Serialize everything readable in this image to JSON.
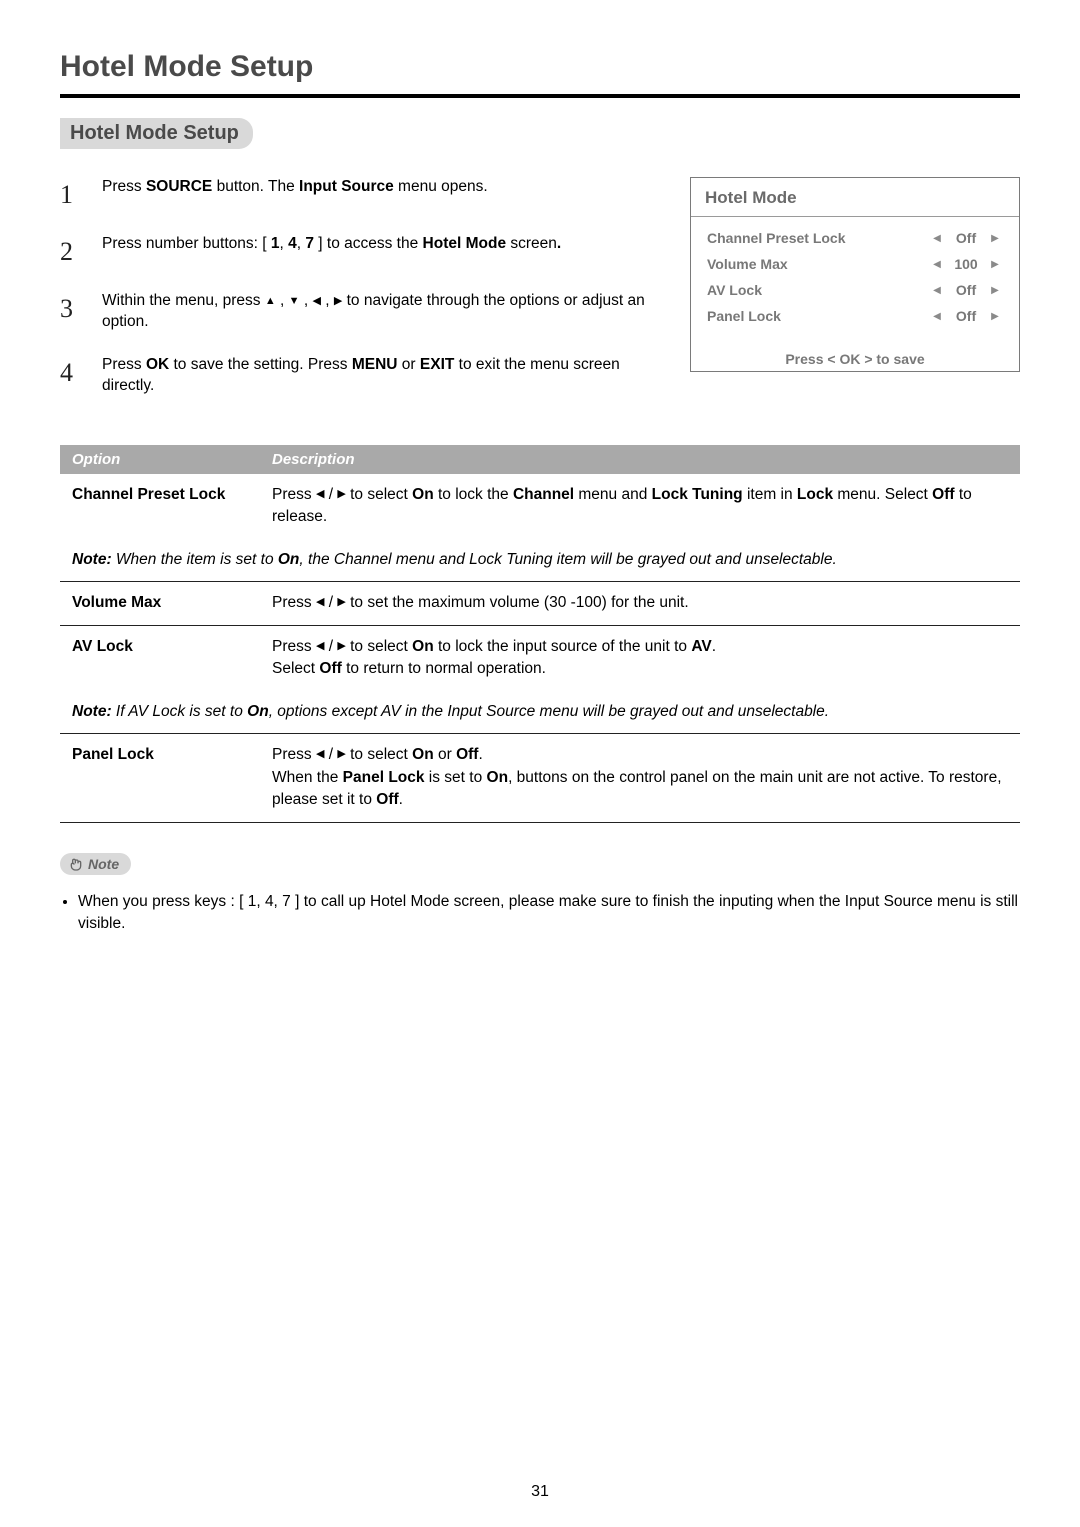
{
  "page": {
    "title": "Hotel Mode Setup",
    "section": "Hotel Mode Setup",
    "number": "31"
  },
  "steps": [
    {
      "n": "1",
      "html": "Press <b>SOURCE</b> button. The <b>Input Source</b> menu opens."
    },
    {
      "n": "2",
      "html": "Press number buttons: [ <b>1</b>, <b>4</b>, <b>7</b> ] to access the <b>Hotel Mode</b> screen<b>.</b>"
    },
    {
      "n": "3",
      "html": "Within the menu, press <span class='tri'>▲</span> , <span class='tri'>▼</span> , <span class='tri'>◀</span> , <span class='tri'>▶</span>  to navigate through the options or adjust an option."
    },
    {
      "n": "4",
      "html": "Press <b>OK</b> to save the setting. Press <b>MENU</b> or <b>EXIT</b> to exit the menu screen directly."
    }
  ],
  "panel": {
    "title": "Hotel  Mode",
    "rows": [
      {
        "label": "Channel Preset Lock",
        "value": "Off"
      },
      {
        "label": "Volume Max",
        "value": "100"
      },
      {
        "label": "AV Lock",
        "value": "Off"
      },
      {
        "label": "Panel Lock",
        "value": "Off"
      }
    ],
    "footer": "Press < OK > to save",
    "colors": {
      "border": "#7a7a7a",
      "text": "#787878"
    }
  },
  "table": {
    "headers": [
      "Option",
      "Description"
    ],
    "rows": [
      {
        "type": "opt",
        "option": "Channel Preset Lock",
        "desc": "Press <span class='tri'>◀</span> / <span class='tri'>▶</span>  to select <b>On</b> to lock the <b>Channel</b> menu and <b>Lock Tuning</b> item in <b>Lock</b> menu. Select <b>Off</b> to release."
      },
      {
        "type": "note",
        "desc": "<span class='nlabel'>Note:</span> When the item is set to <b>On</b>, the Channel menu and Lock Tuning item will be grayed out and unselectable."
      },
      {
        "type": "opt",
        "option": "Volume Max",
        "desc": "Press <span class='tri'>◀</span> / <span class='tri'>▶</span>  to set the maximum volume (30 -100) for the unit."
      },
      {
        "type": "opt",
        "option": "AV Lock",
        "desc": "Press <span class='tri'>◀</span> / <span class='tri'>▶</span>  to select <b>On</b> to lock the input source of the unit to <b>AV</b>.<br>Select <b>Off</b> to return to normal operation."
      },
      {
        "type": "note",
        "desc": "<span class='nlabel'>Note:</span> If AV Lock  is set to <b>On</b>, options  except  AV  in  the  Input  Source  menu  will  be  grayed  out  and  unselectable."
      },
      {
        "type": "opt",
        "option": "Panel Lock",
        "desc": "Press <span class='tri'>◀</span> / <span class='tri'>▶</span>  to select <b>On</b> or <b>Off</b>.<br>When the <b>Panel Lock</b> is set to <b>On</b>, buttons on the control panel on the main unit are not active. To restore, please set it to <b>Off</b>."
      }
    ]
  },
  "footnote": {
    "badge": "Note",
    "items": [
      "When  you  press  keys : [  1, 4, 7 ] to call up Hotel Mode screen, please make sure to  finish  the  inputing  when  the Input Source menu  is still visible."
    ]
  }
}
